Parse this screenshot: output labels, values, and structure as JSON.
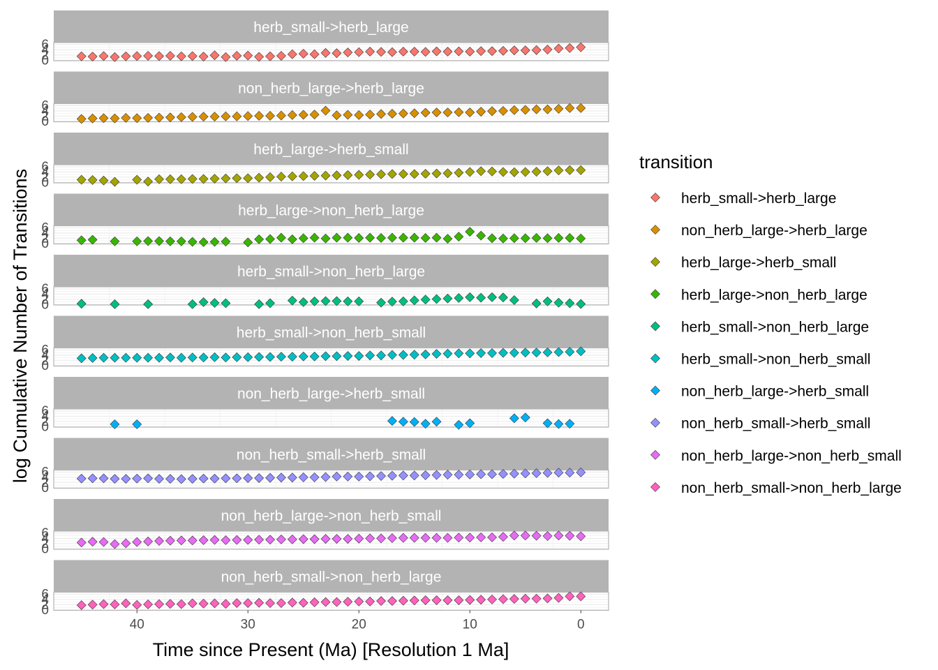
{
  "chart_data": {
    "type": "scatter",
    "facet_by": "transition",
    "xlabel": "Time since Present (Ma) [Resolution 1 Ma]",
    "ylabel": "log Cumulative Number of Transitions",
    "xlim": [
      47.5,
      -2.5
    ],
    "x_reversed": true,
    "x_ticks": [
      40,
      30,
      20,
      10,
      0
    ],
    "ylim": [
      -0.2,
      6.8
    ],
    "y_ticks": [
      0,
      2,
      4,
      6
    ],
    "grid": true,
    "legend": {
      "title": "transition",
      "position": "right"
    },
    "series": [
      {
        "name": "herb_small->herb_large",
        "color": "#F8766D",
        "x": [
          45,
          44,
          43,
          42,
          41,
          40,
          39,
          38,
          37,
          36,
          35,
          34,
          33,
          32,
          31,
          30,
          29,
          28,
          27,
          26,
          25,
          24,
          23,
          22,
          21,
          20,
          19,
          18,
          17,
          16,
          15,
          14,
          13,
          12,
          11,
          10,
          9,
          8,
          7,
          6,
          5,
          4,
          3,
          2,
          1,
          0
        ],
        "y": [
          1.5,
          1.4,
          1.6,
          1.2,
          1.5,
          1.6,
          1.7,
          1.6,
          1.7,
          1.5,
          1.6,
          1.4,
          1.9,
          1.2,
          1.7,
          1.8,
          1.3,
          1.5,
          1.7,
          2.3,
          2.5,
          2.3,
          2.8,
          2.7,
          3.0,
          3.1,
          3.3,
          3.2,
          3.1,
          3.3,
          3.3,
          3.2,
          3.4,
          3.3,
          3.4,
          3.3,
          3.5,
          3.5,
          3.6,
          3.8,
          3.8,
          3.9,
          4.1,
          4.5,
          4.7,
          5.0
        ]
      },
      {
        "name": "non_herb_large->herb_large",
        "color": "#D89000",
        "x": [
          45,
          44,
          43,
          42,
          41,
          40,
          39,
          38,
          37,
          36,
          35,
          34,
          33,
          32,
          31,
          30,
          29,
          28,
          27,
          26,
          25,
          24,
          23,
          22,
          21,
          20,
          19,
          18,
          17,
          16,
          15,
          14,
          13,
          12,
          11,
          10,
          9,
          8,
          7,
          6,
          5,
          4,
          3,
          2,
          1,
          0
        ],
        "y": [
          0.9,
          1.1,
          1.2,
          1.1,
          1.3,
          1.2,
          1.3,
          1.4,
          1.5,
          1.6,
          1.7,
          1.8,
          1.8,
          1.9,
          1.9,
          2.0,
          2.1,
          2.1,
          2.2,
          2.4,
          2.5,
          2.6,
          4.1,
          2.3,
          2.5,
          2.4,
          2.6,
          2.8,
          2.9,
          3.0,
          3.1,
          3.3,
          3.4,
          3.4,
          3.5,
          3.4,
          3.7,
          3.9,
          4.0,
          4.3,
          4.4,
          4.6,
          4.6,
          4.8,
          5.1,
          5.1
        ]
      },
      {
        "name": "herb_large->herb_small",
        "color": "#A3A500",
        "x": [
          45,
          44,
          43,
          42,
          40,
          39,
          38,
          37,
          36,
          35,
          34,
          33,
          32,
          31,
          30,
          29,
          28,
          27,
          26,
          25,
          24,
          23,
          22,
          21,
          20,
          19,
          18,
          17,
          16,
          15,
          14,
          13,
          12,
          11,
          10,
          9,
          8,
          7,
          6,
          5,
          4,
          3,
          2,
          1,
          0
        ],
        "y": [
          1.0,
          0.9,
          0.7,
          0.2,
          1.0,
          0.3,
          1.2,
          1.2,
          1.2,
          1.3,
          1.3,
          1.4,
          1.5,
          1.6,
          1.6,
          1.8,
          2.0,
          2.2,
          2.3,
          2.4,
          2.5,
          2.6,
          2.7,
          2.8,
          2.9,
          3.0,
          3.1,
          3.2,
          3.2,
          3.2,
          3.3,
          3.4,
          3.5,
          3.7,
          4.0,
          4.3,
          4.2,
          4.0,
          3.9,
          4.0,
          4.1,
          4.3,
          4.6,
          4.7,
          4.7
        ]
      },
      {
        "name": "herb_large->non_herb_large",
        "color": "#39B600",
        "x": [
          45,
          44,
          42,
          40,
          39,
          38,
          37,
          36,
          35,
          34,
          33,
          32,
          30,
          29,
          28,
          27,
          26,
          25,
          24,
          23,
          22,
          21,
          20,
          19,
          18,
          17,
          16,
          15,
          14,
          13,
          12,
          11,
          10,
          9,
          8,
          7,
          6,
          5,
          4,
          3,
          2,
          1,
          0
        ],
        "y": [
          1.2,
          1.4,
          0.8,
          0.8,
          0.9,
          0.9,
          0.8,
          0.8,
          0.6,
          0.5,
          0.6,
          0.7,
          0.4,
          1.6,
          1.7,
          2.2,
          1.6,
          2.0,
          2.2,
          1.9,
          2.2,
          2.2,
          2.1,
          2.2,
          2.1,
          2.2,
          2.2,
          2.2,
          2.1,
          2.2,
          1.8,
          2.6,
          4.5,
          3.0,
          2.0,
          1.9,
          2.0,
          2.0,
          2.1,
          2.0,
          2.1,
          2.1,
          1.9
        ]
      },
      {
        "name": "herb_small->non_herb_large",
        "color": "#00BF7D",
        "x": [
          45,
          42,
          39,
          35,
          34,
          33,
          32,
          29,
          28,
          26,
          25,
          24,
          23,
          22,
          21,
          20,
          18,
          17,
          16,
          15,
          14,
          13,
          12,
          11,
          10,
          9,
          8,
          7,
          6,
          4,
          3,
          2,
          1,
          0
        ],
        "y": [
          0.3,
          0.1,
          0.1,
          0.1,
          0.9,
          0.6,
          0.5,
          0.1,
          0.5,
          1.5,
          0.9,
          1.2,
          1.3,
          1.3,
          1.2,
          1.2,
          0.7,
          1.1,
          1.2,
          1.6,
          1.9,
          2.1,
          2.3,
          2.5,
          2.8,
          2.6,
          2.8,
          2.7,
          1.7,
          0.4,
          1.2,
          0.7,
          0.5,
          0.2
        ]
      },
      {
        "name": "herb_small->non_herb_small",
        "color": "#00BFC4",
        "x": [
          45,
          44,
          43,
          42,
          41,
          40,
          39,
          38,
          37,
          36,
          35,
          34,
          33,
          32,
          31,
          30,
          29,
          28,
          27,
          26,
          25,
          24,
          23,
          22,
          21,
          20,
          19,
          18,
          17,
          16,
          15,
          14,
          13,
          12,
          11,
          10,
          9,
          8,
          7,
          6,
          5,
          4,
          3,
          2,
          1,
          0
        ],
        "y": [
          2.8,
          2.9,
          3.0,
          3.0,
          3.0,
          3.0,
          3.0,
          3.0,
          3.1,
          3.0,
          3.1,
          3.1,
          3.2,
          3.1,
          3.2,
          3.2,
          3.3,
          3.3,
          3.4,
          3.4,
          3.5,
          3.5,
          3.6,
          3.6,
          3.7,
          3.7,
          3.9,
          3.9,
          4.1,
          4.1,
          4.2,
          4.3,
          4.5,
          4.6,
          4.7,
          4.7,
          4.8,
          4.8,
          4.9,
          4.9,
          5.0,
          5.0,
          5.1,
          5.2,
          5.3,
          5.5
        ]
      },
      {
        "name": "non_herb_large->herb_small",
        "color": "#00B0F6",
        "x": [
          42,
          40,
          17,
          16,
          15,
          14,
          13,
          11,
          10,
          6,
          5,
          3,
          2,
          1
        ],
        "y": [
          0.9,
          0.9,
          2.2,
          1.9,
          1.8,
          1.1,
          1.9,
          0.7,
          1.3,
          3.2,
          3.5,
          1.3,
          1.0,
          1.1
        ]
      },
      {
        "name": "non_herb_small->herb_small",
        "color": "#9590FF",
        "x": [
          45,
          44,
          43,
          42,
          41,
          40,
          39,
          38,
          37,
          36,
          35,
          34,
          33,
          32,
          31,
          30,
          29,
          28,
          27,
          26,
          25,
          24,
          23,
          22,
          21,
          20,
          19,
          18,
          17,
          16,
          15,
          14,
          13,
          12,
          11,
          10,
          9,
          8,
          7,
          6,
          5,
          4,
          3,
          2,
          1,
          0
        ],
        "y": [
          3.5,
          3.6,
          3.6,
          3.4,
          3.4,
          3.5,
          3.6,
          3.4,
          3.4,
          3.3,
          3.4,
          3.5,
          3.5,
          3.6,
          3.6,
          3.7,
          3.7,
          3.8,
          3.9,
          3.9,
          4.0,
          4.0,
          4.1,
          4.3,
          4.3,
          4.3,
          4.4,
          4.5,
          4.6,
          4.7,
          4.7,
          4.8,
          4.9,
          5.0,
          5.0,
          5.1,
          5.2,
          5.2,
          5.3,
          5.4,
          5.5,
          5.6,
          5.7,
          5.8,
          5.8,
          5.9
        ]
      },
      {
        "name": "non_herb_large->non_herb_small",
        "color": "#E76BF3",
        "x": [
          45,
          44,
          43,
          42,
          41,
          40,
          39,
          38,
          37,
          36,
          35,
          34,
          33,
          32,
          31,
          30,
          29,
          28,
          27,
          26,
          25,
          24,
          23,
          22,
          21,
          20,
          19,
          18,
          17,
          16,
          15,
          14,
          13,
          12,
          11,
          10,
          9,
          8,
          7,
          6,
          5,
          4,
          3,
          2,
          1,
          0
        ],
        "y": [
          2.4,
          2.7,
          2.6,
          1.8,
          2.1,
          2.6,
          2.8,
          3.0,
          3.1,
          3.2,
          3.2,
          3.3,
          3.4,
          3.3,
          3.4,
          3.4,
          3.5,
          3.5,
          3.6,
          3.6,
          3.7,
          3.7,
          3.8,
          3.8,
          3.8,
          3.9,
          4.0,
          4.0,
          4.1,
          4.2,
          4.2,
          4.2,
          4.2,
          4.2,
          4.3,
          4.3,
          4.4,
          4.4,
          4.6,
          5.1,
          5.1,
          5.0,
          4.9,
          5.1,
          5.0,
          4.8
        ]
      },
      {
        "name": "non_herb_small->non_herb_large",
        "color": "#FF62BC",
        "x": [
          45,
          44,
          43,
          42,
          41,
          40,
          39,
          38,
          37,
          36,
          35,
          34,
          33,
          32,
          31,
          30,
          29,
          28,
          27,
          26,
          25,
          24,
          23,
          22,
          21,
          20,
          19,
          18,
          17,
          16,
          15,
          14,
          13,
          12,
          11,
          10,
          9,
          8,
          7,
          6,
          5,
          4,
          3,
          2,
          1,
          0
        ],
        "y": [
          1.8,
          2.0,
          2.2,
          2.1,
          2.5,
          1.9,
          2.1,
          2.2,
          2.3,
          2.2,
          2.5,
          2.4,
          2.5,
          2.3,
          2.6,
          2.6,
          2.7,
          2.6,
          2.6,
          2.8,
          2.7,
          2.9,
          3.0,
          3.0,
          3.1,
          3.2,
          3.2,
          3.4,
          3.4,
          3.5,
          3.6,
          3.7,
          3.7,
          3.7,
          3.7,
          3.8,
          3.9,
          4.0,
          4.1,
          4.2,
          4.3,
          4.3,
          4.4,
          4.6,
          5.2,
          5.2
        ]
      }
    ]
  }
}
